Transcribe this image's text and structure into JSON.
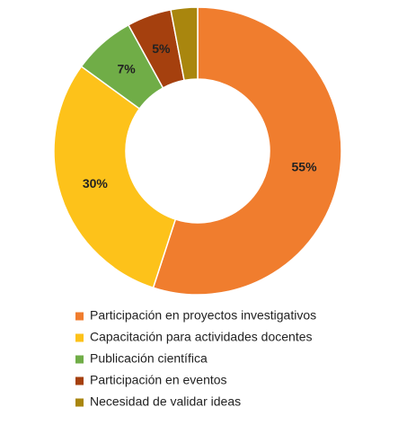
{
  "chart_data": {
    "type": "donut",
    "categories": [
      "Participación en proyectos investigativos",
      "Capacitación para actividades docentes",
      "Publicación científica",
      "Participación en eventos",
      "Necesidad de validar ideas"
    ],
    "values": [
      55,
      30,
      7,
      5,
      3
    ],
    "value_labels": [
      "55%",
      "30%",
      "7%",
      "5%",
      null
    ],
    "colors": [
      "#f07d2e",
      "#fdc21a",
      "#70ad47",
      "#a5400e",
      "#a9860e"
    ],
    "legend": "bottom"
  }
}
